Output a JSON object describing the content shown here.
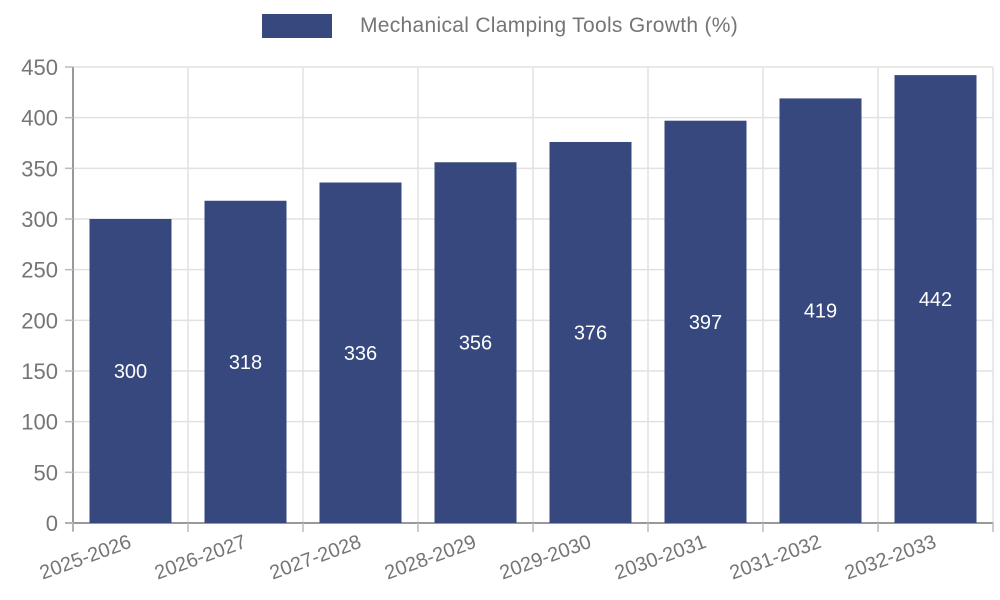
{
  "legend": {
    "label": "Mechanical Clamping Tools Growth (%)"
  },
  "chart_data": {
    "type": "bar",
    "title": "Mechanical Clamping Tools Growth (%)",
    "categories": [
      "2025-2026",
      "2026-2027",
      "2027-2028",
      "2028-2029",
      "2029-2030",
      "2030-2031",
      "2031-2032",
      "2032-2033"
    ],
    "values": [
      300,
      318,
      336,
      356,
      376,
      397,
      419,
      442
    ],
    "xlabel": "",
    "ylabel": "",
    "ylim": [
      0,
      450
    ],
    "ytick_step": 50,
    "ytick_labels": [
      "0",
      "50",
      "100",
      "150",
      "200",
      "250",
      "300",
      "350",
      "400",
      "450"
    ],
    "grid": true,
    "legend_position": "top",
    "x_label_rotation": -20,
    "colors": {
      "bar": "#36487e",
      "bar_value_label": "#ffffff",
      "grid_line": "#e2e2e2",
      "axis_line": "#999999",
      "tick_mark": "#bbbbbb",
      "tick_text": "#757575"
    }
  }
}
